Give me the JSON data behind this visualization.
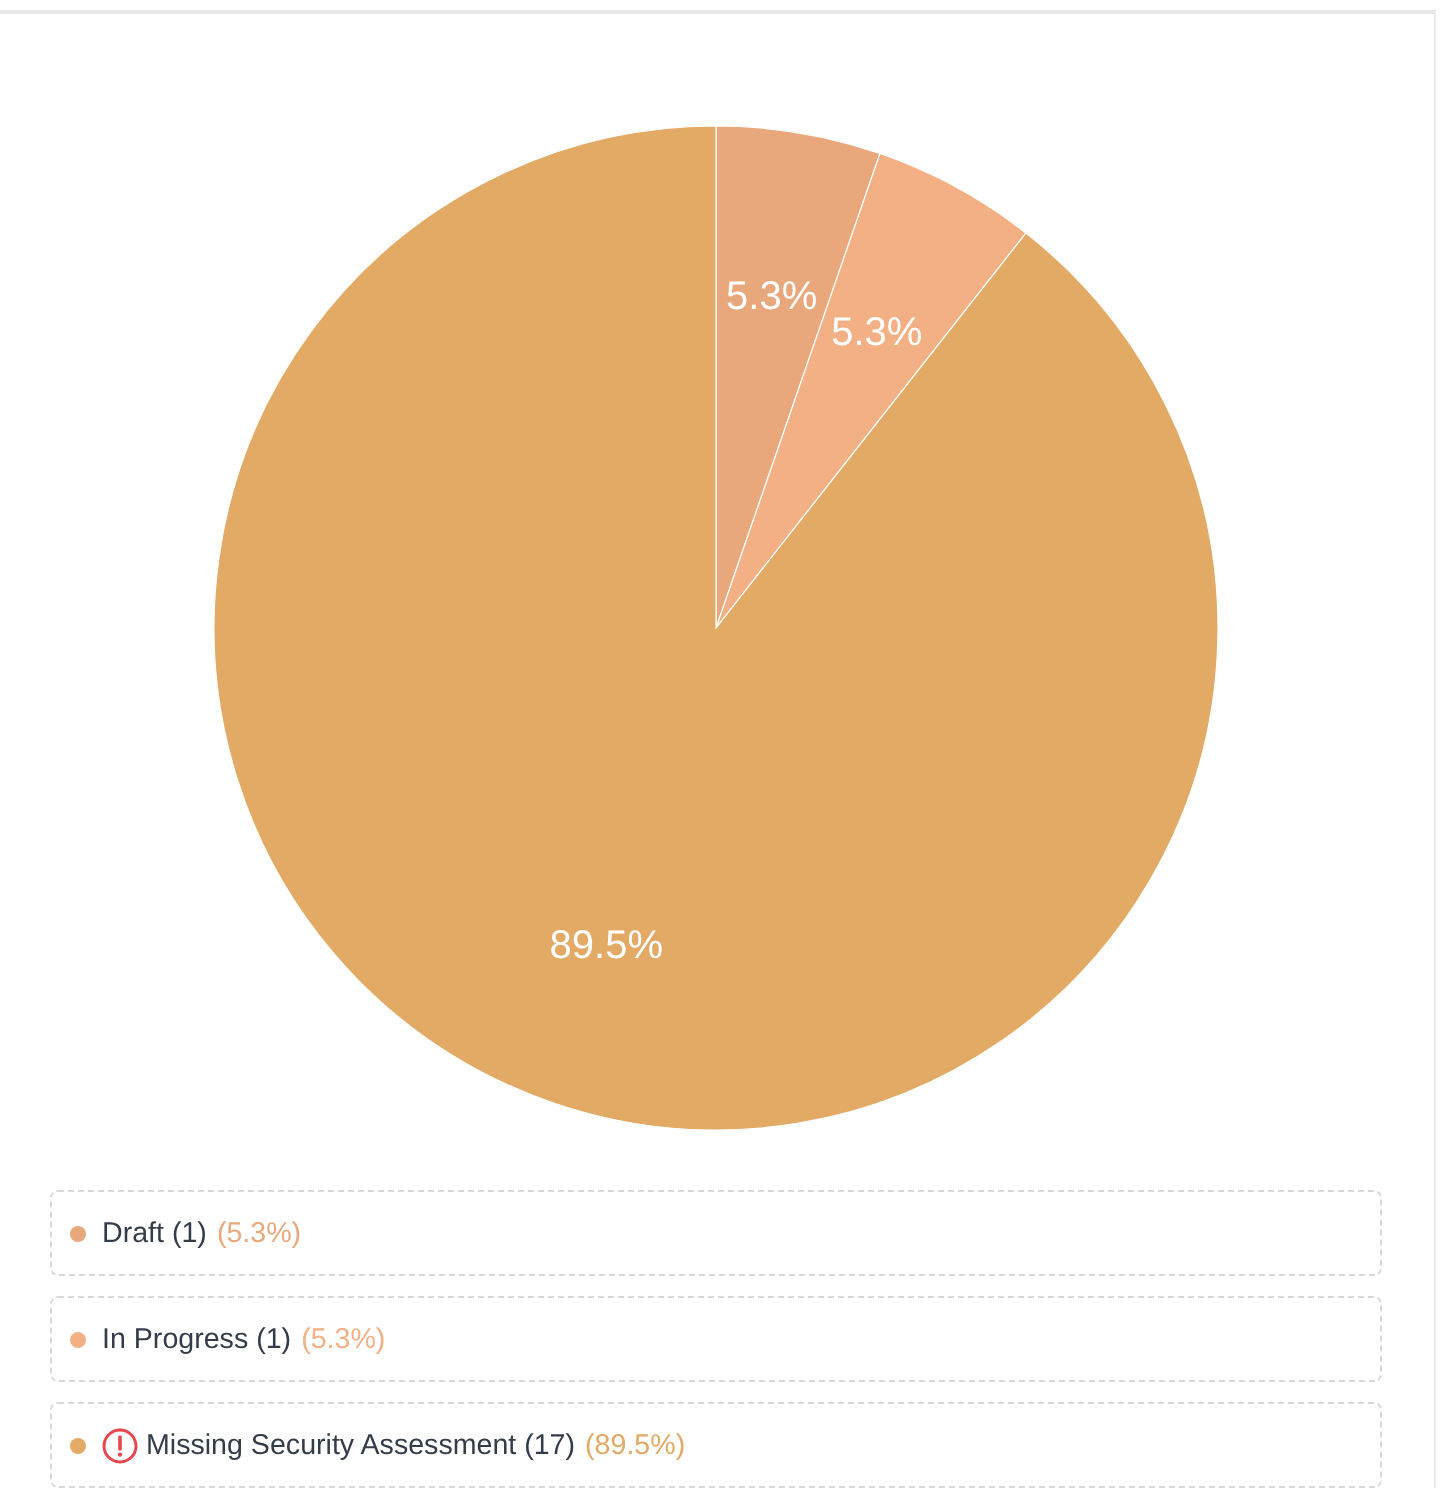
{
  "chart_data": {
    "type": "pie",
    "categories": [
      "Draft (1) (5.3%)",
      "In Progress (1) (5.3%)",
      "Missing Security Assessment (17) (89.5%)"
    ],
    "values": [
      5.3,
      5.3,
      89.5
    ],
    "colors": [
      "#e8a87c",
      "#f3b084",
      "#e3aa66"
    ],
    "value_labels": [
      "5.3%",
      "5.3%",
      "89.5%"
    ],
    "legend": "bottom"
  }
}
